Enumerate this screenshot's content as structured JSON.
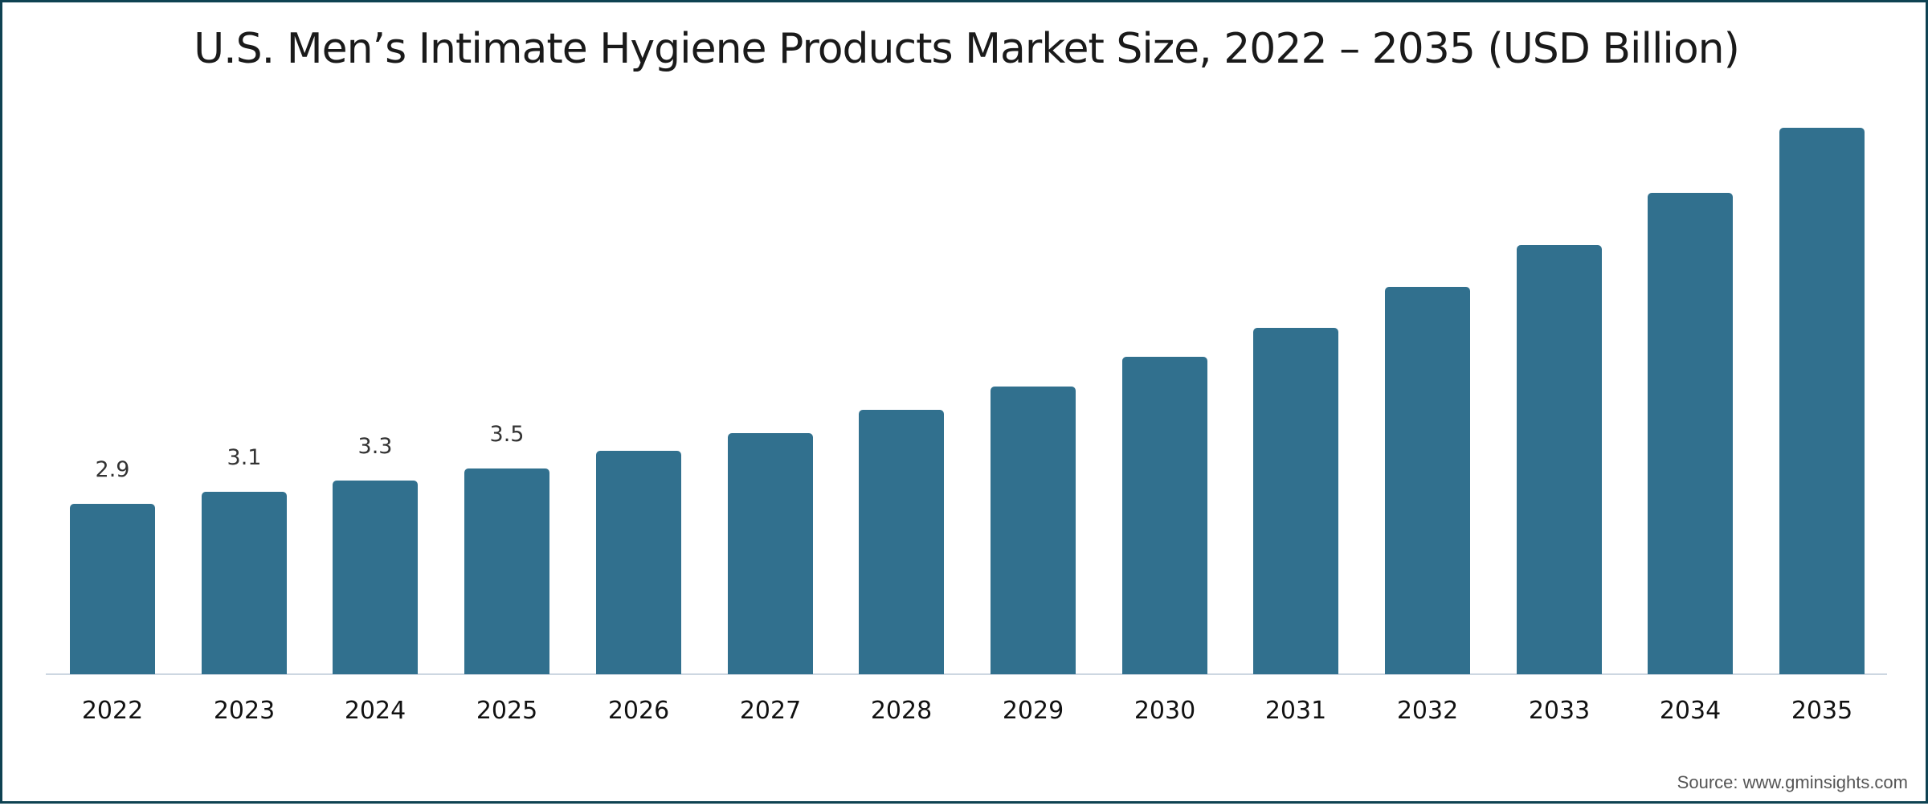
{
  "title": "U.S. Men’s Intimate Hygiene Products Market Size, 2022 – 2035 (USD Billion)",
  "source": "Source: www.gminsights.com",
  "colors": {
    "bar": "#31708e",
    "frame": "#0e4252",
    "axis": "#cdd7e1"
  },
  "chart_data": {
    "type": "bar",
    "title": "U.S. Men’s Intimate Hygiene Products Market Size, 2022 – 2035 (USD Billion)",
    "xlabel": "",
    "ylabel": "USD Billion",
    "categories": [
      "2022",
      "2023",
      "2024",
      "2025",
      "2026",
      "2027",
      "2028",
      "2029",
      "2030",
      "2031",
      "2032",
      "2033",
      "2034",
      "2035"
    ],
    "values": [
      2.9,
      3.1,
      3.3,
      3.5,
      3.8,
      4.1,
      4.5,
      4.9,
      5.4,
      5.9,
      6.6,
      7.3,
      8.2,
      9.3
    ],
    "data_labels": [
      "2.9",
      "3.1",
      "3.3",
      "3.5",
      "",
      "",
      "",
      "",
      "",
      "",
      "",
      "",
      "",
      ""
    ],
    "ylim": [
      0,
      10
    ],
    "grid": false,
    "legend": null,
    "y_axis_visible": false,
    "source": "Source: www.gminsights.com"
  }
}
